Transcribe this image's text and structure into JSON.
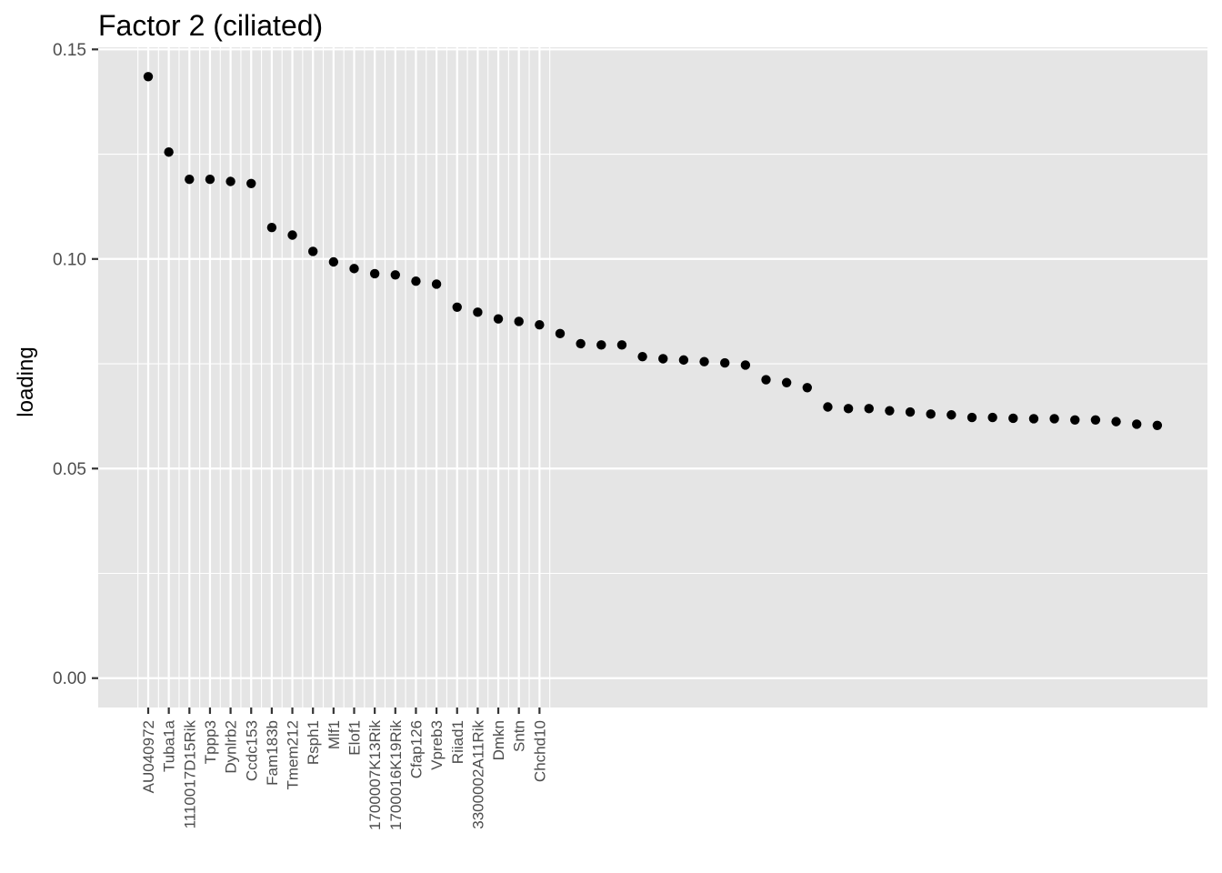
{
  "chart_data": {
    "type": "scatter",
    "title": "Factor 2 (ciliated)",
    "xlabel": "",
    "ylabel": "loading",
    "ylim": [
      -0.007,
      0.1505
    ],
    "y_ticks": [
      0.0,
      0.05,
      0.1,
      0.15
    ],
    "y_tick_labels": [
      "0.00",
      "0.05",
      "0.10",
      "0.15"
    ],
    "grid": true,
    "legend": "none",
    "x_labeled_count": 20,
    "categories": [
      "AU040972",
      "Tuba1a",
      "1110017D15Rik",
      "Tppp3",
      "Dynlrb2",
      "Ccdc153",
      "Fam183b",
      "Tmem212",
      "Rsph1",
      "Mlf1",
      "Elof1",
      "1700007K13Rik",
      "1700016K19Rik",
      "Cfap126",
      "Vpreb3",
      "Riiad1",
      "3300002A11Rik",
      "Dmkn",
      "Sntn",
      "Chchd10"
    ],
    "values": [
      0.1435,
      0.1255,
      0.119,
      0.119,
      0.1185,
      0.118,
      0.1075,
      0.1057,
      0.1018,
      0.0993,
      0.0977,
      0.0965,
      0.0962,
      0.0947,
      0.094,
      0.0885,
      0.0873,
      0.0857,
      0.0851,
      0.0843,
      0.0822,
      0.0798,
      0.0795,
      0.0795,
      0.0767,
      0.0762,
      0.0759,
      0.0755,
      0.0752,
      0.0747,
      0.0712,
      0.0705,
      0.0693,
      0.0647,
      0.0643,
      0.0643,
      0.0638,
      0.0635,
      0.063,
      0.0628,
      0.0622,
      0.0622,
      0.062,
      0.0619,
      0.0619,
      0.0616,
      0.0616,
      0.0612,
      0.0606,
      0.0603
    ],
    "colors": {
      "panel": "#e5e5e5",
      "grid": "#ffffff",
      "point": "#000000",
      "tick": "#4d4d4d",
      "text": "#000000"
    }
  }
}
